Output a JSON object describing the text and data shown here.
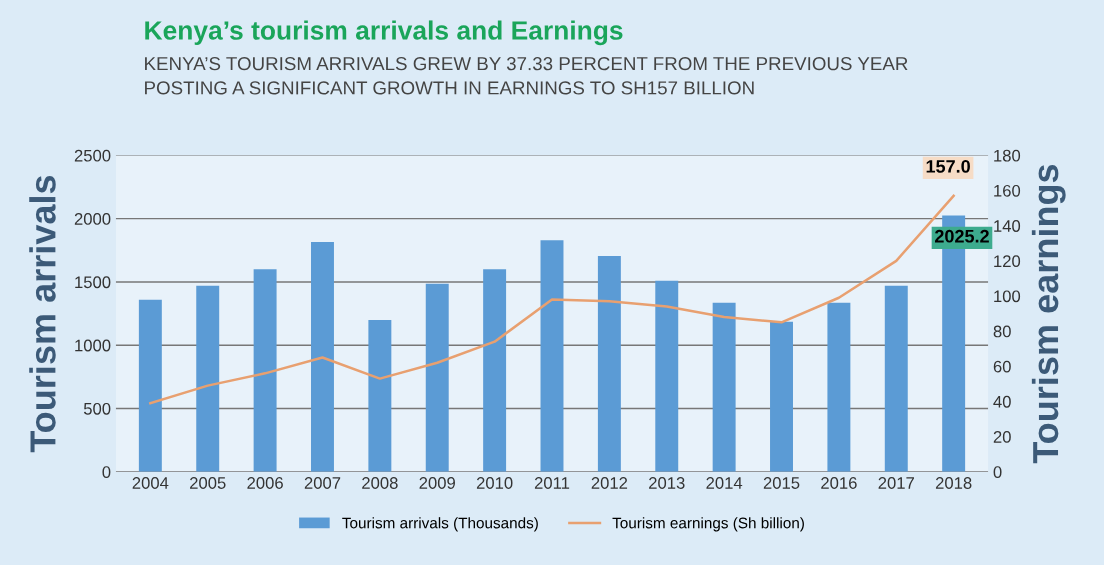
{
  "chart_data": {
    "type": "bar",
    "title": "Kenya’s tourism arrivals and Earnings",
    "subtitle": "KENYA’S TOURISM ARRIVALS GREW BY 37.33 PERCENT FROM THE PREVIOUS YEAR\nPOSTING A SIGNIFICANT GROWTH IN EARNINGS TO SH157 BILLION",
    "ylabel": "Tourism arrivals",
    "y2label": "Tourism earnings",
    "categories": [
      "2004",
      "2005",
      "2006",
      "2007",
      "2008",
      "2009",
      "2010",
      "2011",
      "2012",
      "2013",
      "2014",
      "2015",
      "2016",
      "2017",
      "2018"
    ],
    "series": [
      {
        "name": "Tourism arrivals (Thousands)",
        "color": "#5b9bd5",
        "values": [
          1360,
          1470,
          1600,
          1815,
          1200,
          1485,
          1600,
          1830,
          1705,
          1510,
          1335,
          1185,
          1335,
          1470,
          2025.2
        ],
        "value_labels": [
          null,
          null,
          null,
          null,
          null,
          null,
          null,
          null,
          null,
          null,
          null,
          null,
          null,
          null,
          "2025.2"
        ]
      },
      {
        "name": "Tourism earnings (Sh billion)",
        "type": "line",
        "axis": "y2",
        "color": "#e8a070",
        "values": [
          39,
          49,
          56,
          65,
          53,
          62,
          74,
          98,
          97,
          94,
          88,
          85,
          99,
          120,
          157.0
        ],
        "value_labels": [
          null,
          null,
          null,
          null,
          null,
          null,
          null,
          null,
          null,
          null,
          null,
          null,
          null,
          null,
          "157.0"
        ]
      }
    ],
    "ylim": [
      0,
      2500
    ],
    "yticks": [
      0,
      500,
      1000,
      1500,
      2000,
      2500
    ],
    "y2lim": [
      0,
      180
    ],
    "y2ticks": [
      0,
      20,
      40,
      60,
      80,
      100,
      120,
      140,
      160,
      180
    ],
    "grid": "y",
    "legend": "bottom",
    "marker": "none",
    "line_style": "solid"
  }
}
